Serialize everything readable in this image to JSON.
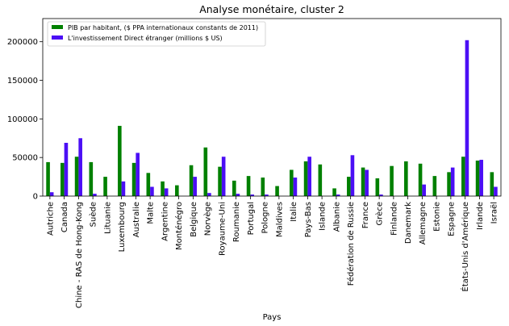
{
  "chart_data": {
    "type": "bar",
    "title": "Analyse monétaire, cluster 2",
    "xlabel": "Pays",
    "ylabel": "",
    "ylim": [
      0,
      230000
    ],
    "yticks": [
      0,
      50000,
      100000,
      150000,
      200000
    ],
    "legend_position": "top-left",
    "categories": [
      "Autriche",
      "Canada",
      "Chine - RAS de Hong-Kong",
      "Suède",
      "Lituanie",
      "Luxembourg",
      "Australie",
      "Malte",
      "Argentine",
      "Monténégro",
      "Belgique",
      "Norvège",
      "Royaume-Uni",
      "Roumanie",
      "Portugal",
      "Pologne",
      "Maldives",
      "Italie",
      "Pays-Bas",
      "Islande",
      "Albanie",
      "Fédération de Russie",
      "France",
      "Grèce",
      "Finlande",
      "Danemark",
      "Allemagne",
      "Estonie",
      "Espagne",
      "États-Unis d'Amérique",
      "Irlande",
      "Israël"
    ],
    "series": [
      {
        "name": "PIB par habitant, ($ PPA internationaux constants de 2011)",
        "color": "#008000",
        "values": [
          44000,
          43000,
          51000,
          44000,
          25000,
          91000,
          43000,
          30000,
          19000,
          14000,
          40000,
          63000,
          38000,
          20000,
          26000,
          24000,
          13000,
          34000,
          45000,
          41000,
          10000,
          25000,
          37000,
          23000,
          39000,
          45000,
          42000,
          26000,
          31000,
          51000,
          46000,
          31000
        ]
      },
      {
        "name": "L'investissement Direct étranger (millions $ US)",
        "color": "#4b0ff5",
        "values": [
          5000,
          69000,
          75000,
          3000,
          0,
          19000,
          56000,
          12000,
          10000,
          0,
          25000,
          4000,
          51000,
          3000,
          2000,
          2000,
          0,
          24000,
          51000,
          0,
          2000,
          53000,
          34000,
          2000,
          0,
          0,
          15000,
          0,
          37000,
          202000,
          47000,
          12000
        ]
      }
    ]
  }
}
